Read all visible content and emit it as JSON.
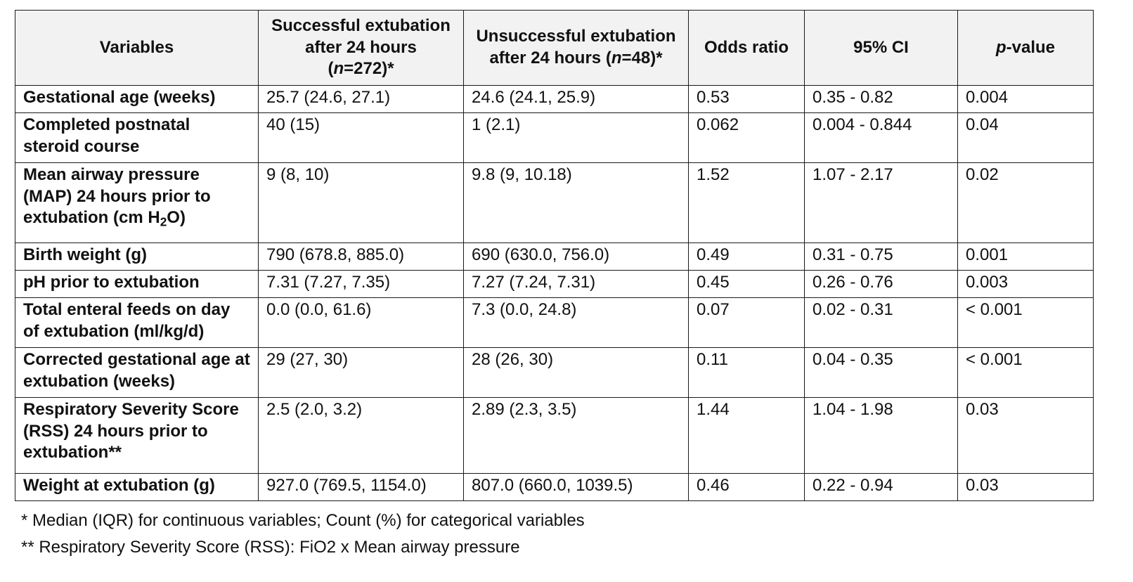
{
  "table": {
    "headers": {
      "variables": "Variables",
      "successful": {
        "line1": "Successful extubation",
        "line2": "after 24 hours",
        "n_open": "(",
        "n_italic": "n",
        "n_rest": "=272)*"
      },
      "unsuccessful": {
        "line1": "Unsuccessful extubation",
        "line2_pre": "after 24 hours (",
        "n_italic": "n",
        "line2_post": "=48)*"
      },
      "odds_ratio": "Odds ratio",
      "ci": "95% CI",
      "p_value": {
        "italic": "p",
        "rest": "-value"
      }
    },
    "rows": [
      {
        "variable": "Gestational age (weeks)",
        "successful": "25.7 (24.6, 27.1)",
        "unsuccessful": "24.6 (24.1, 25.9)",
        "odds_ratio": "0.53",
        "ci": "0.35 - 0.82",
        "p_value": "0.004"
      },
      {
        "variable": "Completed postnatal steroid course",
        "successful": "40 (15)",
        "unsuccessful": "1 (2.1)",
        "odds_ratio": "0.062",
        "ci": "0.004 - 0.844",
        "p_value": "0.04"
      },
      {
        "variable_pre": "Mean airway pressure (MAP) 24 hours prior to extubation (cm H",
        "variable_sub": "2",
        "variable_post": "O)",
        "successful": "9 (8, 10)",
        "unsuccessful": "9.8 (9, 10.18)",
        "odds_ratio": "1.52",
        "ci": "1.07 - 2.17",
        "p_value": "0.02"
      },
      {
        "variable": "Birth weight (g)",
        "successful": "790 (678.8, 885.0)",
        "unsuccessful": "690 (630.0, 756.0)",
        "odds_ratio": "0.49",
        "ci": "0.31 - 0.75",
        "p_value": "0.001"
      },
      {
        "variable": "pH prior to extubation",
        "successful": "7.31 (7.27, 7.35)",
        "unsuccessful": "7.27 (7.24, 7.31)",
        "odds_ratio": "0.45",
        "ci": "0.26 - 0.76",
        "p_value": "0.003"
      },
      {
        "variable": "Total enteral feeds on day of extubation (ml/kg/d)",
        "successful": "0.0 (0.0, 61.6)",
        "unsuccessful": "7.3 (0.0, 24.8)",
        "odds_ratio": "0.07",
        "ci": "0.02 - 0.31",
        "p_value": "< 0.001"
      },
      {
        "variable": "Corrected gestational age at extubation (weeks)",
        "successful": "29 (27, 30)",
        "unsuccessful": "28 (26, 30)",
        "odds_ratio": "0.11",
        "ci": "0.04 - 0.35",
        "p_value": "< 0.001"
      },
      {
        "variable": "Respiratory Severity Score (RSS) 24 hours prior to extubation**",
        "successful": "2.5 (2.0, 3.2)",
        "unsuccessful": "2.89 (2.3, 3.5)",
        "odds_ratio": "1.44",
        "ci": "1.04 - 1.98",
        "p_value": "0.03"
      },
      {
        "variable": "Weight at extubation (g)",
        "successful": "927.0 (769.5, 1154.0)",
        "unsuccessful": "807.0 (660.0, 1039.5)",
        "odds_ratio": "0.46",
        "ci": "0.22 - 0.94",
        "p_value": "0.03"
      }
    ]
  },
  "footnotes": {
    "note1": "* Median (IQR) for continuous variables; Count (%) for categorical variables",
    "note2": "** Respiratory Severity Score (RSS): FiO2 x Mean airway pressure"
  }
}
